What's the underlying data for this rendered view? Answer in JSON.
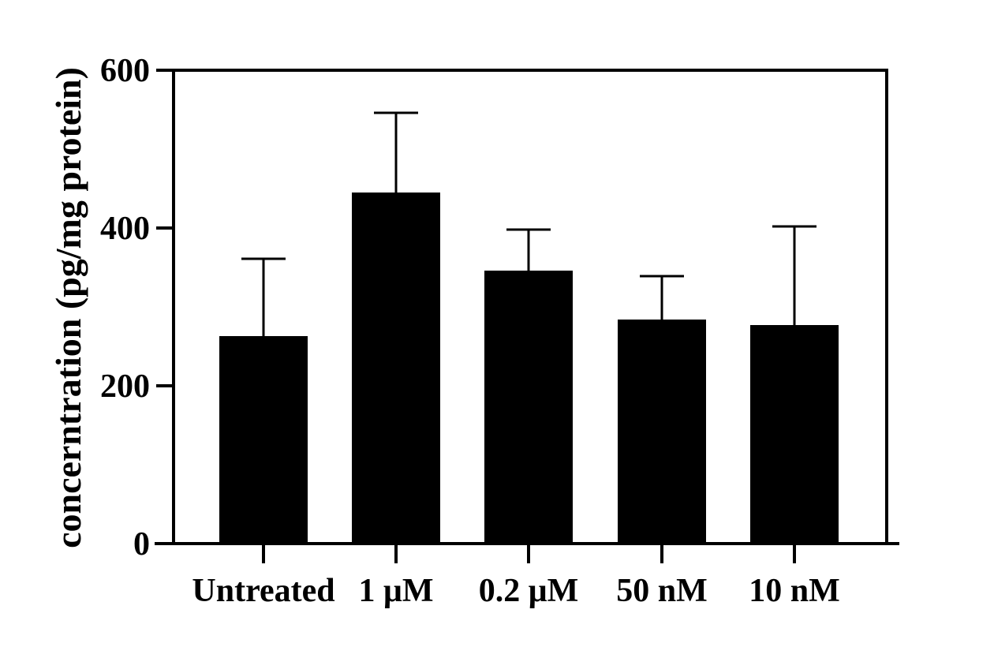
{
  "chart_data": {
    "type": "bar",
    "title": "",
    "xlabel": "",
    "ylabel": "concerntration (pg/mg protein)",
    "categories": [
      "Untreated",
      "1 μM",
      "0.2 μM",
      "50 nM",
      "10 nM"
    ],
    "series": [
      {
        "values": [
          263,
          445,
          346,
          284,
          277
        ],
        "error_upper": [
          98,
          101,
          52,
          55,
          125
        ],
        "color": "#000000"
      }
    ],
    "ylim": [
      0,
      600
    ],
    "yticks": [
      0,
      200,
      400,
      600
    ],
    "ytick_labels": [
      "0",
      "200",
      "400",
      "600"
    ],
    "grid": false,
    "legend": "none"
  }
}
